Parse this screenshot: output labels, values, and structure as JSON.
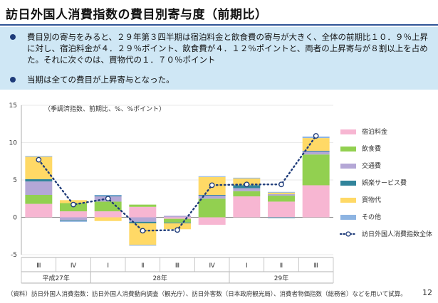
{
  "header": {
    "title": "訪日外国人消費指数の費目別寄与度（前期比）"
  },
  "summary": {
    "bullets": [
      "費目別の寄与をみると、２９年第３四半期は宿泊料金と飲食費の寄与が大きく、全体の前期比１０．９％上昇に対し、宿泊料金が４．２９％ポイント、飲食費が４．１２％ポイントと、両者の上昇寄与が８割以上を占めた。それに次ぐのは、買物代の１．７０％ポイント",
      "当期は全ての費目が上昇寄与となった。"
    ]
  },
  "chart_data": {
    "type": "bar",
    "stacked": true,
    "unit_note": "（季調済指数、前期比、%、%ポイント）",
    "categories": [
      "Ⅲ",
      "Ⅳ",
      "Ⅰ",
      "Ⅱ",
      "Ⅲ",
      "Ⅳ",
      "Ⅰ",
      "Ⅱ",
      "Ⅲ"
    ],
    "year_groups": [
      {
        "label": "平成27年",
        "span": [
          0,
          1
        ]
      },
      {
        "label": "28年",
        "span": [
          2,
          5
        ]
      },
      {
        "label": "29年",
        "span": [
          6,
          8
        ]
      }
    ],
    "ylim": [
      -5,
      15
    ],
    "yticks": [
      -5,
      0,
      5,
      10,
      15
    ],
    "series": [
      {
        "name": "宿泊料金",
        "color": "#f7b6d2",
        "values": [
          1.8,
          0.8,
          0.8,
          1.4,
          -0.2,
          -1.0,
          2.8,
          2.1,
          4.29
        ]
      },
      {
        "name": "飲食費",
        "color": "#92d050",
        "values": [
          1.2,
          1.1,
          1.3,
          0.3,
          -0.5,
          2.5,
          0.7,
          0.8,
          4.12
        ]
      },
      {
        "name": "交通費",
        "color": "#b4a7d6",
        "values": [
          1.8,
          -0.4,
          0.7,
          -0.6,
          0.2,
          0.4,
          0.4,
          0.2,
          0.4
        ]
      },
      {
        "name": "娯楽サービス費",
        "color": "#31849b",
        "values": [
          0.3,
          -0.1,
          0.1,
          -0.2,
          -0.1,
          0.1,
          0.4,
          -0.1,
          0.1
        ]
      },
      {
        "name": "買物代",
        "color": "#ffd966",
        "values": [
          3.0,
          0.4,
          -0.5,
          -2.9,
          -0.8,
          2.4,
          0.9,
          0.2,
          1.7
        ]
      },
      {
        "name": "その他",
        "color": "#8db4e2",
        "values": [
          0.1,
          -0.1,
          0.1,
          -0.1,
          0.0,
          0.1,
          0.1,
          0.1,
          0.2
        ]
      }
    ],
    "line_series": {
      "name": "訪日外国人消費指数全体",
      "color": "#1f3c7a",
      "values": [
        7.7,
        1.7,
        2.5,
        -1.8,
        -1.7,
        4.3,
        4.4,
        4.4,
        10.9
      ]
    }
  },
  "footer": {
    "source": "（資料）訪日外国人消費指数：訪日外国人消費動向調査（観光庁）、訪日外客数（日本政府観光局）、消費者物価指数（総務省）などを用いて試算。"
  },
  "page_number": "12"
}
